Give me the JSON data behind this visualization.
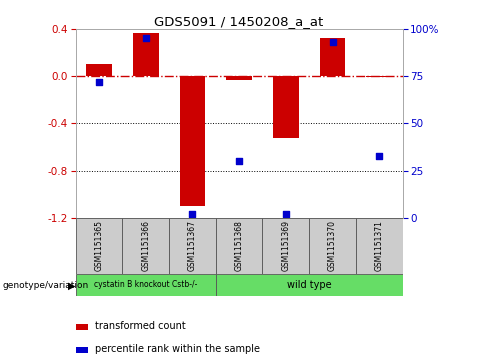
{
  "title": "GDS5091 / 1450208_a_at",
  "samples": [
    "GSM1151365",
    "GSM1151366",
    "GSM1151367",
    "GSM1151368",
    "GSM1151369",
    "GSM1151370",
    "GSM1151371"
  ],
  "transformed_count": [
    0.1,
    0.37,
    -1.1,
    -0.03,
    -0.52,
    0.32,
    -0.01
  ],
  "percentile_rank": [
    72,
    95,
    2,
    30,
    2,
    93,
    33
  ],
  "ylim_left": [
    -1.2,
    0.4
  ],
  "ylim_right": [
    0,
    100
  ],
  "bar_color": "#cc0000",
  "dot_color": "#0000cc",
  "dashed_line_color": "#cc0000",
  "group1_label": "cystatin B knockout Cstb-/-",
  "group2_label": "wild type",
  "group1_indices": [
    0,
    1,
    2
  ],
  "group2_indices": [
    3,
    4,
    5,
    6
  ],
  "group_color": "#66dd66",
  "legend_bar_label": "transformed count",
  "legend_dot_label": "percentile rank within the sample",
  "genotype_label": "genotype/variation",
  "tick_label_color_left": "#cc0000",
  "tick_label_color_right": "#0000cc",
  "yticks_left": [
    0.4,
    0.0,
    -0.4,
    -0.8,
    -1.2
  ],
  "yticks_right": [
    100,
    75,
    50,
    25,
    0
  ],
  "sample_box_color": "#cccccc"
}
